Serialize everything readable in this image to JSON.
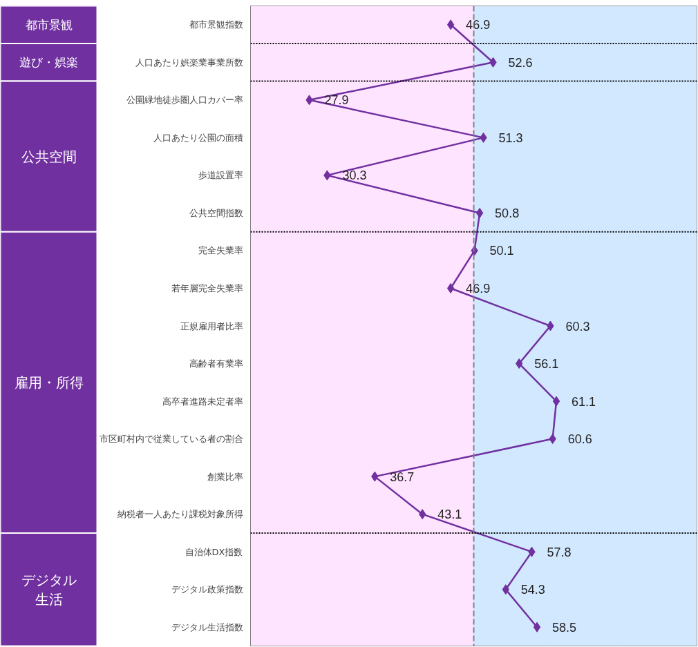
{
  "chart_data": {
    "type": "line",
    "orientation": "horizontal",
    "categories": [
      "都市景観指数",
      "人口あたり娯楽業事業所数",
      "公園緑地徒歩圏人口カバー率",
      "人口あたり公園の面積",
      "歩道設置率",
      "公共空間指数",
      "完全失業率",
      "若年層完全失業率",
      "正規雇用者比率",
      "高齢者有業率",
      "高卒者進路未定者率",
      "市区町村内で従業している者の割合",
      "創業比率",
      "納税者一人あたり課税対象所得",
      "自治体DX指数",
      "デジタル政策指数",
      "デジタル生活指数"
    ],
    "series": [
      {
        "color": "#7030a0",
        "values": [
          46.9,
          52.6,
          27.9,
          51.3,
          30.3,
          50.8,
          50.1,
          46.9,
          60.3,
          56.1,
          61.1,
          60.6,
          36.7,
          43.1,
          57.8,
          54.3,
          58.5
        ]
      }
    ],
    "data_labels": true,
    "marker": "diamond",
    "line_style": "solid",
    "xlim": [
      20,
      80
    ],
    "xticks": [
      {
        "value": 20,
        "label": null
      },
      {
        "value": 30,
        "label": null
      },
      {
        "value": 40,
        "label": null
      },
      {
        "value": 50,
        "label": null
      },
      {
        "value": 60,
        "label": null
      },
      {
        "value": 70,
        "label": null
      },
      {
        "value": 80,
        "label": null
      }
    ],
    "tick_labels": "y",
    "grid": "x",
    "ref_lines": [
      {
        "axis": "x",
        "value": 50,
        "color": "#808080",
        "line_style": "dashed"
      }
    ],
    "bands": [
      {
        "axis": "x",
        "from": 20,
        "to": 50,
        "color": "#ffe4ff"
      },
      {
        "axis": "x",
        "from": 50,
        "to": 80,
        "color": "#d2e8ff"
      }
    ],
    "annotations": [
      "都市景観",
      "遊び・娯楽",
      "公共空間",
      "雇用・所得",
      "デジタル生活"
    ]
  }
}
